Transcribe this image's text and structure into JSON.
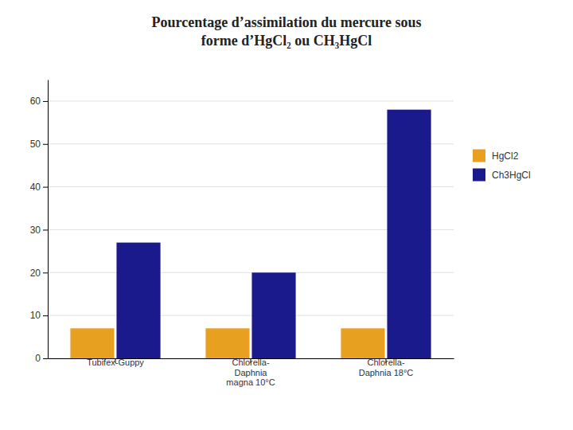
{
  "chart_data": {
    "type": "bar",
    "title": "Pourcentage d’assimilation du mercure sous\nforme d’HgCl₂ ou CH₃HgCl",
    "categories": [
      "Tubifex-Guppy",
      "Chlorella-\nDaphnia\nmagna 10°C",
      "Chlorella-\nDaphnia 18°C"
    ],
    "series": [
      {
        "name": "HgCl2",
        "color": "#E8A020",
        "values": [
          7,
          7,
          7
        ]
      },
      {
        "name": "Ch3HgCl",
        "color": "#1a1a8c",
        "values": [
          27,
          20,
          58
        ]
      }
    ],
    "ylim": [
      0,
      65
    ],
    "yticks": [
      0,
      10,
      20,
      30,
      40,
      50,
      60
    ],
    "grid": true,
    "legend": "right"
  }
}
